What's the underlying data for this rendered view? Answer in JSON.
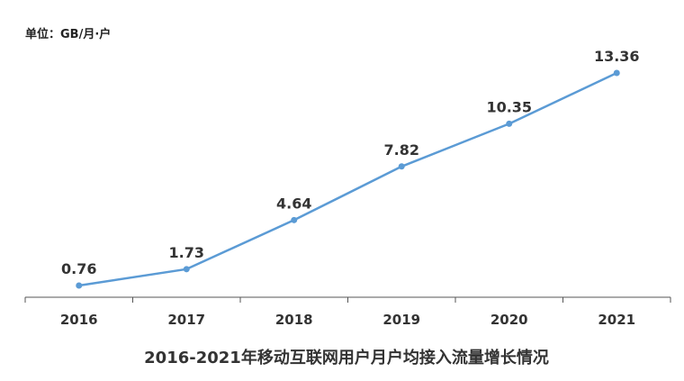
{
  "chart_data": {
    "type": "line",
    "title": "2016-2021年移动互联网用户月户均接入流量增长情况",
    "unit_label": "单位：GB/月·户",
    "categories": [
      "2016",
      "2017",
      "2018",
      "2019",
      "2020",
      "2021"
    ],
    "series": [
      {
        "values": [
          0.76,
          1.73,
          4.64,
          7.82,
          10.35,
          13.36
        ],
        "color": "#5b9bd5"
      }
    ],
    "data_labels": [
      "0.76",
      "1.73",
      "4.64",
      "7.82",
      "10.35",
      "13.36"
    ],
    "ylim": [
      0,
      14
    ],
    "grid": false,
    "legend": "none"
  }
}
